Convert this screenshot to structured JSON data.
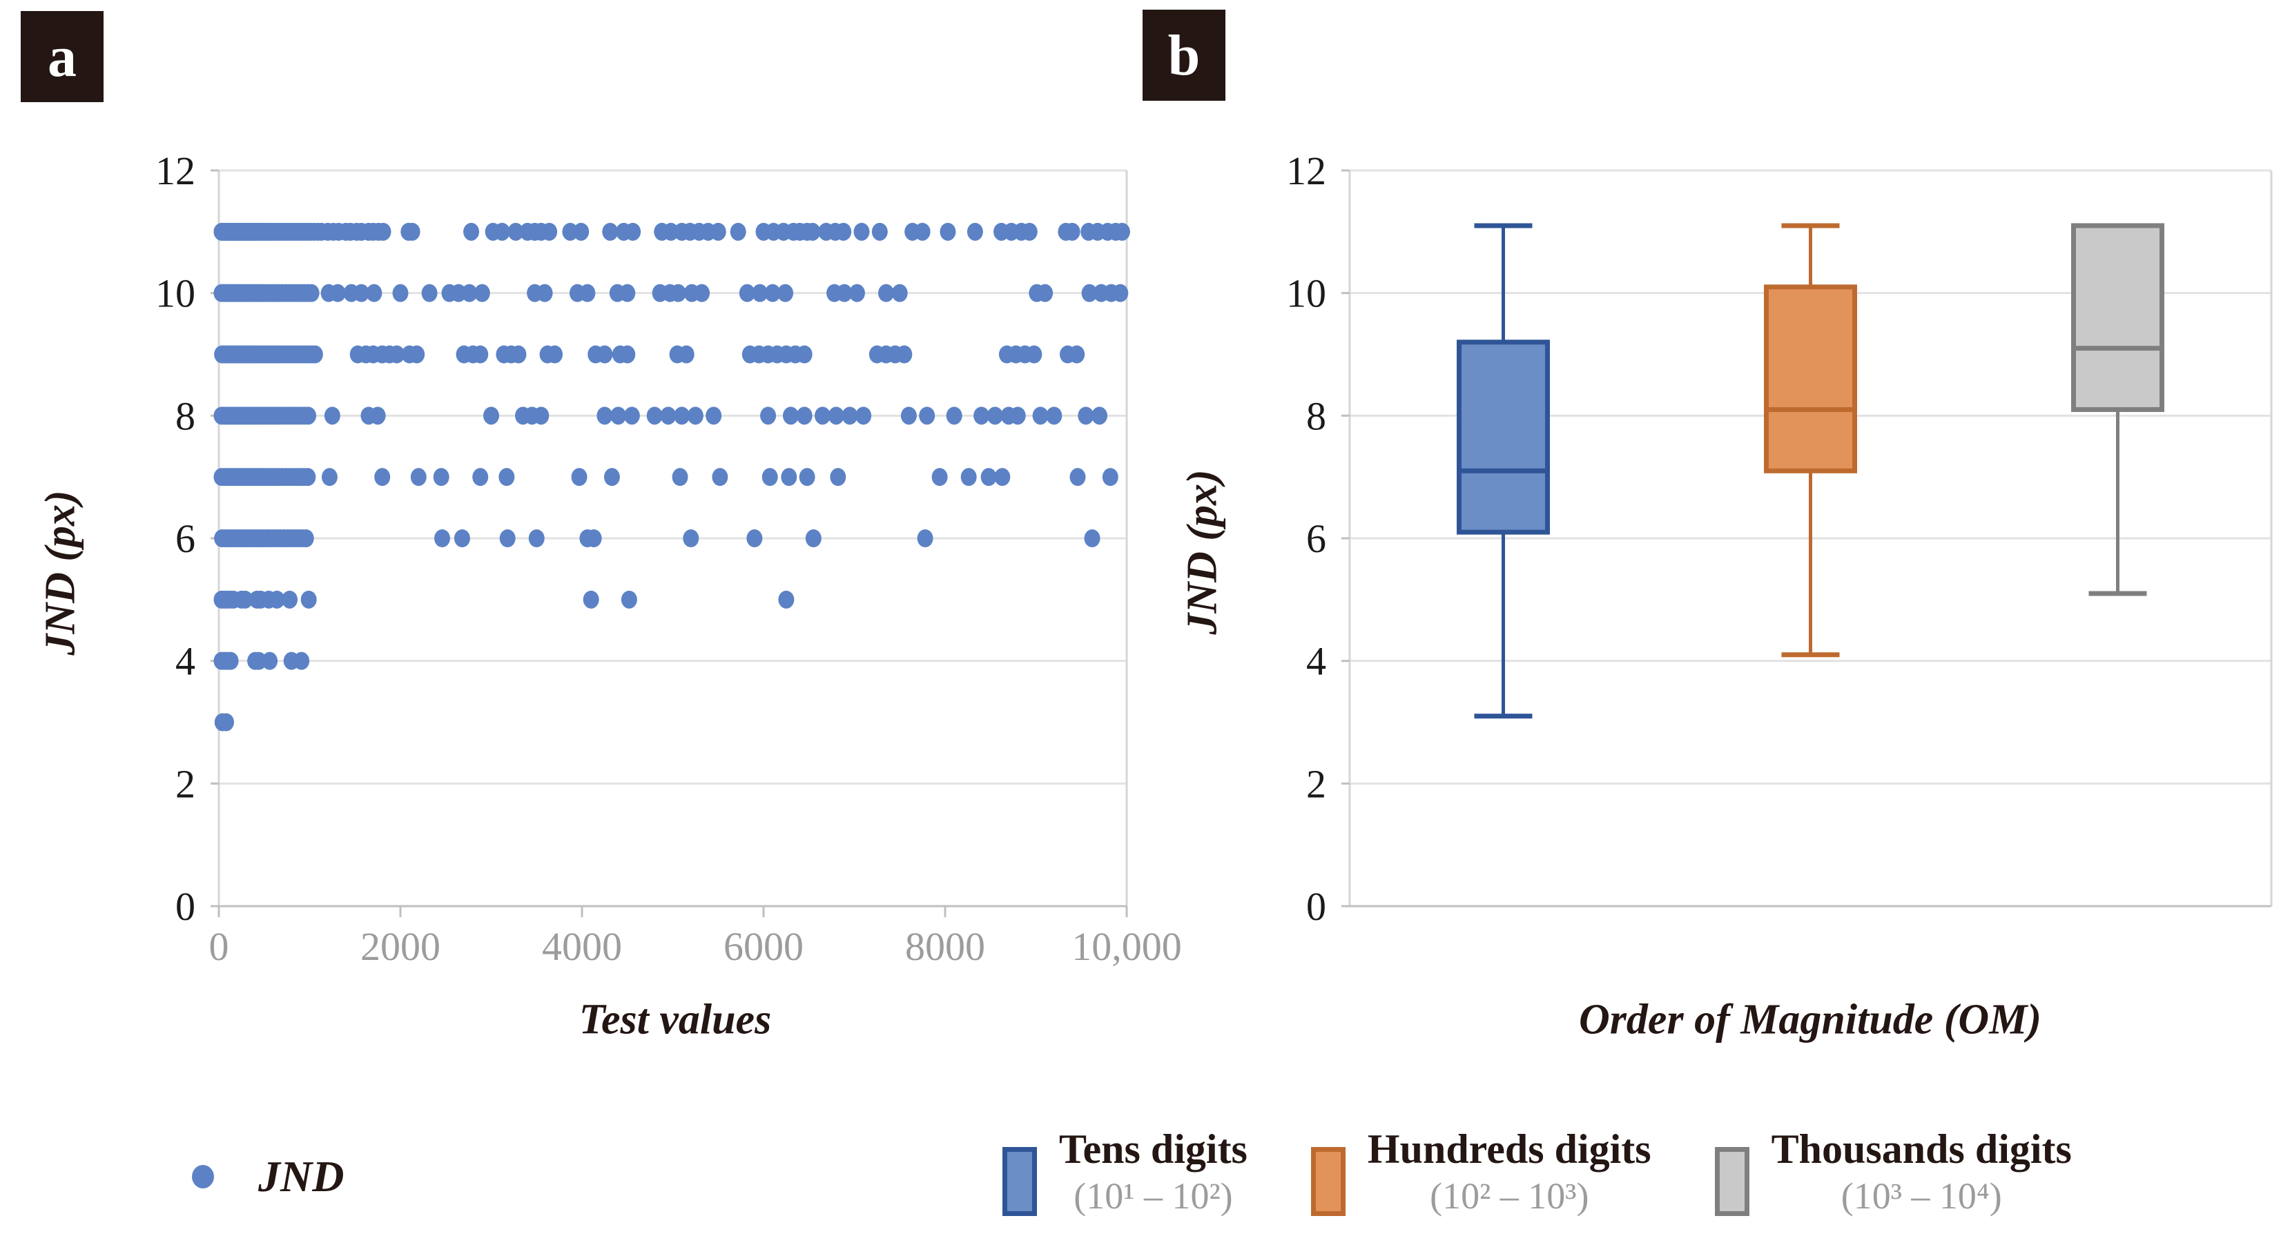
{
  "figure": {
    "background": "#ffffff",
    "panel_a_letter": "a",
    "panel_b_letter": "b",
    "panel_label_bg": "#231613",
    "panel_label_fg": "#ffffff"
  },
  "panel_a": {
    "y_axis_label": "JND (px)",
    "x_axis_label": "Test values",
    "y_tick_labels": [
      "12",
      "10",
      "8",
      "6",
      "4",
      "2",
      "0"
    ],
    "x_tick_labels": [
      "0",
      "2000",
      "4000",
      "6000",
      "8000",
      "10,000"
    ],
    "legend_label": "JND"
  },
  "panel_b": {
    "y_axis_label": "JND (px)",
    "x_axis_label": "Order of Magnitude (OM)",
    "y_tick_labels": [
      "12",
      "10",
      "8",
      "6",
      "4",
      "2",
      "0"
    ]
  },
  "colors": {
    "scatter_dot": "#5C82C5",
    "gridline": "#E2E2E2",
    "plot_border": "#D6D6D6",
    "axis_line": "#BFBFBF",
    "tick_mark": "#BFBFBF",
    "y_tick_text": "#1A1A1A",
    "x_tick_text": "#9C9C9C",
    "legend_sub_text": "#9C9C9C"
  },
  "chart_data": [
    {
      "type": "scatter",
      "panel": "a",
      "title": "",
      "xlabel": "Test values",
      "ylabel": "JND (px)",
      "xlim": [
        0,
        10000
      ],
      "ylim": [
        0,
        12
      ],
      "x_ticks": [
        0,
        2000,
        4000,
        6000,
        8000,
        10000
      ],
      "y_ticks": [
        0,
        2,
        4,
        6,
        8,
        10,
        12
      ],
      "grid": true,
      "legend_position": "bottom-left",
      "series_name": "JND",
      "rows": [
        {
          "jnd": 11,
          "x": [
            30,
            50,
            65,
            80,
            95,
            110,
            130,
            145,
            160,
            175,
            190,
            205,
            220,
            235,
            250,
            265,
            280,
            295,
            310,
            325,
            340,
            355,
            370,
            385,
            400,
            420,
            440,
            460,
            480,
            500,
            520,
            540,
            560,
            585,
            610,
            635,
            660,
            685,
            710,
            740,
            770,
            800,
            830,
            860,
            890,
            920,
            950,
            980,
            1010,
            1050,
            1090,
            1130,
            1200,
            1260,
            1320,
            1400,
            1450,
            1520,
            1570,
            1650,
            1700,
            1760,
            1810,
            2090,
            2130,
            2780,
            3020,
            3120,
            3270,
            3400,
            3480,
            3550,
            3640,
            3870,
            3990,
            4310,
            4460,
            4560,
            4880,
            4980,
            5100,
            5190,
            5290,
            5390,
            5500,
            5720,
            6000,
            6110,
            6220,
            6330,
            6400,
            6480,
            6540,
            6690,
            6790,
            6880,
            7080,
            7280,
            7640,
            7750,
            8030,
            8330,
            8620,
            8730,
            8840,
            8930,
            9330,
            9400,
            9580,
            9680,
            9790,
            9880,
            9950
          ]
        },
        {
          "jnd": 10,
          "x": [
            30,
            55,
            80,
            105,
            130,
            155,
            180,
            205,
            230,
            255,
            280,
            310,
            340,
            370,
            400,
            430,
            460,
            490,
            520,
            555,
            590,
            625,
            660,
            700,
            740,
            780,
            820,
            860,
            900,
            940,
            980,
            1020,
            1210,
            1310,
            1460,
            1570,
            1710,
            2000,
            2320,
            2540,
            2640,
            2760,
            2900,
            3480,
            3590,
            3950,
            4060,
            4390,
            4500,
            4860,
            4970,
            5060,
            5210,
            5320,
            5820,
            5960,
            6100,
            6240,
            6780,
            6890,
            7030,
            7350,
            7500,
            9010,
            9100,
            9590,
            9720,
            9830,
            9930
          ]
        },
        {
          "jnd": 9,
          "x": [
            35,
            60,
            85,
            110,
            135,
            160,
            185,
            210,
            235,
            260,
            285,
            310,
            335,
            360,
            385,
            410,
            435,
            465,
            495,
            525,
            555,
            585,
            615,
            645,
            675,
            710,
            745,
            780,
            815,
            850,
            885,
            920,
            955,
            990,
            1025,
            1060,
            1530,
            1620,
            1700,
            1800,
            1880,
            1960,
            2100,
            2180,
            2700,
            2800,
            2880,
            3140,
            3220,
            3300,
            3620,
            3700,
            4150,
            4250,
            4420,
            4500,
            5050,
            5150,
            5850,
            5950,
            6050,
            6150,
            6250,
            6350,
            6450,
            7250,
            7350,
            7450,
            7550,
            8680,
            8780,
            8880,
            8980,
            9350,
            9450
          ]
        },
        {
          "jnd": 8,
          "x": [
            30,
            55,
            80,
            105,
            130,
            155,
            180,
            205,
            230,
            255,
            280,
            305,
            330,
            355,
            380,
            405,
            430,
            460,
            490,
            520,
            550,
            580,
            610,
            640,
            670,
            705,
            740,
            775,
            810,
            845,
            880,
            915,
            950,
            985,
            1250,
            1650,
            1750,
            3000,
            3350,
            3450,
            3550,
            4250,
            4400,
            4550,
            4800,
            4950,
            5100,
            5250,
            5450,
            6050,
            6300,
            6450,
            6650,
            6800,
            6950,
            7100,
            7600,
            7800,
            8100,
            8400,
            8550,
            8700,
            8800,
            9050,
            9200,
            9550,
            9700
          ]
        },
        {
          "jnd": 7,
          "x": [
            30,
            60,
            90,
            120,
            150,
            180,
            210,
            240,
            270,
            300,
            330,
            360,
            390,
            420,
            450,
            485,
            520,
            555,
            590,
            625,
            660,
            700,
            740,
            780,
            820,
            860,
            900,
            940,
            980,
            1220,
            1800,
            2200,
            2450,
            2880,
            3170,
            3970,
            4330,
            5080,
            5520,
            6070,
            6280,
            6480,
            6820,
            7940,
            8260,
            8480,
            8630,
            9460,
            9820
          ]
        },
        {
          "jnd": 6,
          "x": [
            35,
            70,
            105,
            140,
            175,
            210,
            245,
            280,
            315,
            350,
            385,
            420,
            455,
            490,
            525,
            560,
            600,
            640,
            680,
            720,
            760,
            800,
            840,
            880,
            920,
            960,
            2460,
            2680,
            3180,
            3500,
            4060,
            4130,
            5200,
            5900,
            6550,
            7780,
            9620
          ]
        },
        {
          "jnd": 5,
          "x": [
            30,
            60,
            90,
            120,
            160,
            250,
            290,
            420,
            460,
            550,
            640,
            780,
            990,
            4100,
            4520,
            6250
          ]
        },
        {
          "jnd": 4,
          "x": [
            30,
            60,
            90,
            130,
            400,
            440,
            560,
            800,
            910
          ]
        },
        {
          "jnd": 3,
          "x": [
            40,
            80
          ]
        }
      ]
    },
    {
      "type": "box",
      "panel": "b",
      "title": "",
      "xlabel": "Order of Magnitude (OM)",
      "ylabel": "JND (px)",
      "ylim": [
        0,
        12
      ],
      "y_ticks": [
        0,
        2,
        4,
        6,
        8,
        10,
        12
      ],
      "grid": true,
      "legend_position": "bottom",
      "groups": [
        {
          "name": "Tens digits",
          "range_label": "(10¹ – 10²)",
          "fill": "#6C8EC6",
          "stroke": "#2F5597",
          "min": 3.1,
          "q1": 6.1,
          "median": 7.1,
          "q3": 9.2,
          "max": 11.1
        },
        {
          "name": "Hundreds digits",
          "range_label": "(10² – 10³)",
          "fill": "#E2935A",
          "stroke": "#BE6A2F",
          "min": 4.1,
          "q1": 7.1,
          "median": 8.1,
          "q3": 10.1,
          "max": 11.1
        },
        {
          "name": "Thousands digits",
          "range_label": "(10³ – 10⁴)",
          "fill": "#C9C9C9",
          "stroke": "#7F7F7F",
          "min": 5.1,
          "q1": 8.1,
          "median": 9.1,
          "q3": 11.1,
          "max": 11.1
        }
      ]
    }
  ]
}
